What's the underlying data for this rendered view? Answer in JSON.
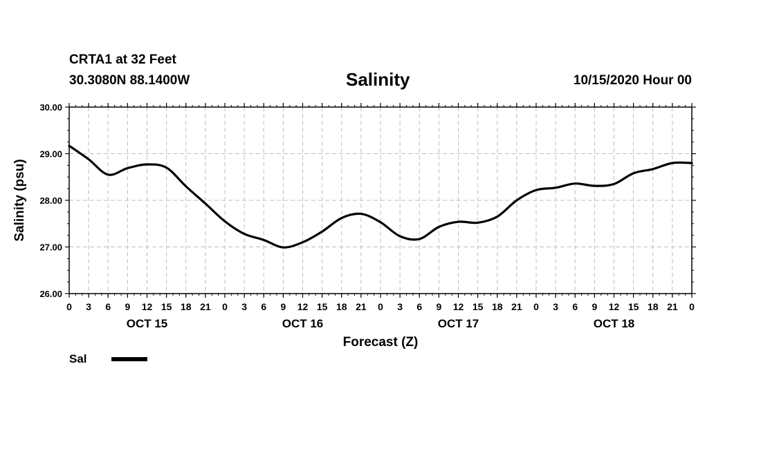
{
  "header": {
    "station": "CRTA1 at 32 Feet",
    "coords": "30.3080N 88.1400W",
    "title": "Salinity",
    "issued": "10/15/2020 Hour 00"
  },
  "legend": {
    "label": "Sal"
  },
  "chart_data": {
    "type": "line",
    "title": "Salinity",
    "xlabel": "Forecast (Z)",
    "ylabel": "Salinity (psu)",
    "ylim": [
      26.0,
      30.0
    ],
    "y_ticks": [
      "26.00",
      "27.00",
      "28.00",
      "29.00",
      "30.00"
    ],
    "xlim": [
      0,
      96
    ],
    "x_tick_labels": [
      "0",
      "3",
      "6",
      "9",
      "12",
      "15",
      "18",
      "21",
      "0",
      "3",
      "6",
      "9",
      "12",
      "15",
      "18",
      "21",
      "0",
      "3",
      "6",
      "9",
      "12",
      "15",
      "18",
      "21",
      "0",
      "3",
      "6",
      "9",
      "12",
      "15",
      "18",
      "21",
      "0"
    ],
    "day_labels": [
      {
        "label": "OCT 15",
        "hour": 12
      },
      {
        "label": "OCT 16",
        "hour": 36
      },
      {
        "label": "OCT 17",
        "hour": 60
      },
      {
        "label": "OCT 18",
        "hour": 84
      }
    ],
    "grid": true,
    "legend_position": "bottom-left",
    "series": [
      {
        "name": "Sal",
        "color": "#000000",
        "x": [
          0,
          3,
          6,
          9,
          12,
          15,
          18,
          21,
          24,
          27,
          30,
          33,
          36,
          39,
          42,
          45,
          48,
          51,
          54,
          57,
          60,
          63,
          66,
          69,
          72,
          75,
          78,
          81,
          84,
          87,
          90,
          93,
          96
        ],
        "values": [
          29.17,
          28.88,
          28.55,
          28.69,
          28.77,
          28.7,
          28.3,
          27.93,
          27.55,
          27.28,
          27.15,
          26.99,
          27.1,
          27.33,
          27.62,
          27.71,
          27.53,
          27.23,
          27.17,
          27.43,
          27.54,
          27.52,
          27.65,
          28.0,
          28.22,
          28.27,
          28.36,
          28.31,
          28.35,
          28.58,
          28.67,
          28.8,
          28.8
        ]
      }
    ]
  }
}
